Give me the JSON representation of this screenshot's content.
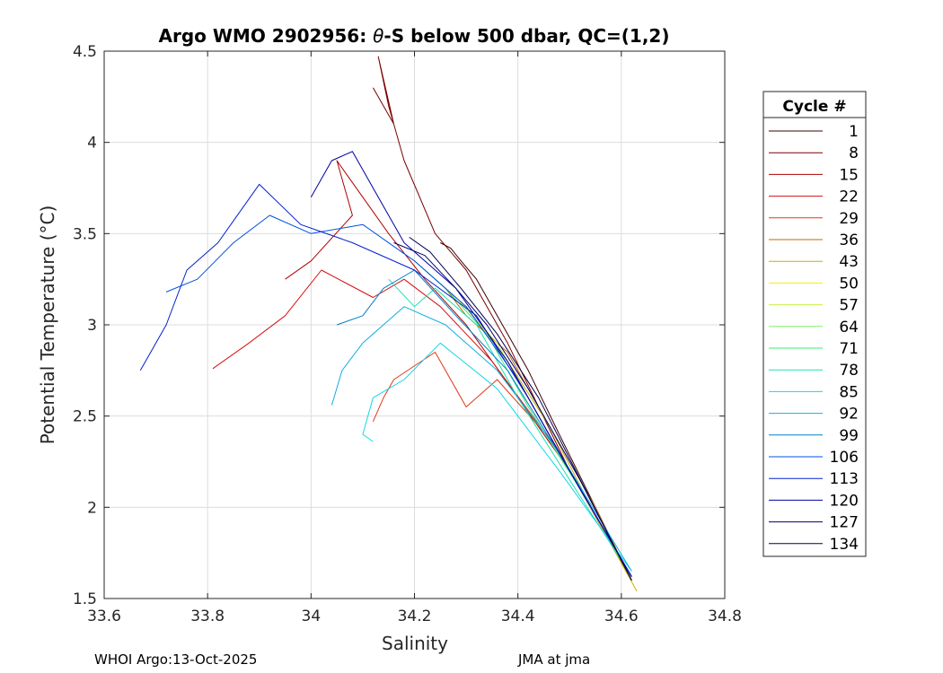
{
  "chart_data": {
    "type": "line",
    "title_prefix": "Argo WMO 2902956: ",
    "title_theta": "θ",
    "title_suffix": "-S below 500 dbar,  QC=(1,2)",
    "xlabel": "Salinity",
    "ylabel": "Potential Temperature (°C)",
    "xlim": [
      33.6,
      34.8
    ],
    "ylim": [
      1.5,
      4.5
    ],
    "xticks": [
      33.6,
      33.8,
      34,
      34.2,
      34.4,
      34.6,
      34.8
    ],
    "xtick_labels": [
      "33.6",
      "33.8",
      "34",
      "34.2",
      "34.4",
      "34.6",
      "34.8"
    ],
    "yticks": [
      1.5,
      2,
      2.5,
      3,
      3.5,
      4,
      4.5
    ],
    "ytick_labels": [
      "1.5",
      "2",
      "2.5",
      "3",
      "3.5",
      "4",
      "4.5"
    ],
    "grid": true,
    "legend": {
      "title": "Cycle #",
      "placement": "right, outside",
      "entries": [
        {
          "label": "1",
          "color": "#3b0000"
        },
        {
          "label": "8",
          "color": "#7a0000"
        },
        {
          "label": "15",
          "color": "#b00000"
        },
        {
          "label": "22",
          "color": "#d41010"
        },
        {
          "label": "29",
          "color": "#e0381a"
        },
        {
          "label": "36",
          "color": "#c06a00"
        },
        {
          "label": "43",
          "color": "#c8b000"
        },
        {
          "label": "50",
          "color": "#f0f000"
        },
        {
          "label": "57",
          "color": "#c8f040"
        },
        {
          "label": "64",
          "color": "#80f060"
        },
        {
          "label": "71",
          "color": "#40e870"
        },
        {
          "label": "78",
          "color": "#20e0b0"
        },
        {
          "label": "85",
          "color": "#10d8e8"
        },
        {
          "label": "92",
          "color": "#10b0e0"
        },
        {
          "label": "99",
          "color": "#0080c8"
        },
        {
          "label": "106",
          "color": "#0050e0"
        },
        {
          "label": "113",
          "color": "#0020d0"
        },
        {
          "label": "120",
          "color": "#0000a0"
        },
        {
          "label": "127",
          "color": "#000070"
        },
        {
          "label": "134",
          "color": "#000050"
        }
      ]
    },
    "series": [
      {
        "name": "cycle 1",
        "color": "#3b0000",
        "x": [
          34.62,
          34.55,
          34.48,
          34.42,
          34.36,
          34.32,
          34.29,
          34.27,
          34.25
        ],
        "y": [
          1.6,
          2.0,
          2.4,
          2.75,
          3.05,
          3.25,
          3.35,
          3.42,
          3.45
        ]
      },
      {
        "name": "cycle 8",
        "color": "#7a0000",
        "x": [
          34.62,
          34.5,
          34.38,
          34.3,
          34.24,
          34.18,
          34.15,
          34.13,
          34.16,
          34.12
        ],
        "y": [
          1.6,
          2.2,
          2.9,
          3.3,
          3.5,
          3.9,
          4.2,
          4.47,
          4.1,
          4.3
        ]
      },
      {
        "name": "cycle 15",
        "color": "#b00000",
        "x": [
          34.62,
          34.5,
          34.4,
          34.3,
          34.22,
          34.15,
          34.1,
          34.05,
          34.08,
          34.0,
          33.95
        ],
        "y": [
          1.6,
          2.2,
          2.6,
          3.0,
          3.25,
          3.5,
          3.7,
          3.9,
          3.6,
          3.35,
          3.25
        ]
      },
      {
        "name": "cycle 22",
        "color": "#d41010",
        "x": [
          34.62,
          34.48,
          34.35,
          34.25,
          34.18,
          34.12,
          34.02,
          33.95,
          33.88,
          33.81
        ],
        "y": [
          1.6,
          2.3,
          2.8,
          3.1,
          3.25,
          3.15,
          3.3,
          3.05,
          2.9,
          2.76
        ]
      },
      {
        "name": "cycle 29",
        "color": "#e0381a",
        "x": [
          34.62,
          34.47,
          34.36,
          34.3,
          34.24,
          34.16,
          34.14,
          34.12
        ],
        "y": [
          1.6,
          2.35,
          2.7,
          2.55,
          2.85,
          2.7,
          2.6,
          2.47
        ]
      },
      {
        "name": "cycle 36",
        "color": "#c06a00",
        "x": [
          34.62,
          34.55,
          34.45,
          34.38,
          34.3,
          34.26
        ],
        "y": [
          1.6,
          2.0,
          2.5,
          2.85,
          3.05,
          3.2
        ]
      },
      {
        "name": "cycle 43",
        "color": "#c8b000",
        "x": [
          34.63,
          34.56,
          34.46,
          34.38,
          34.3,
          34.24
        ],
        "y": [
          1.54,
          1.9,
          2.45,
          2.8,
          3.1,
          3.25
        ]
      },
      {
        "name": "cycle 57",
        "color": "#c8f040",
        "x": [
          34.62,
          34.54,
          34.44,
          34.36,
          34.28,
          34.22
        ],
        "y": [
          1.62,
          2.0,
          2.5,
          2.9,
          3.15,
          3.3
        ]
      },
      {
        "name": "cycle 71",
        "color": "#40e870",
        "x": [
          34.62,
          34.52,
          34.42,
          34.34,
          34.26,
          34.2
        ],
        "y": [
          1.62,
          2.1,
          2.55,
          2.95,
          3.2,
          3.35
        ]
      },
      {
        "name": "cycle 78",
        "color": "#20e0b0",
        "x": [
          34.62,
          34.5,
          34.4,
          34.32,
          34.24,
          34.2,
          34.15
        ],
        "y": [
          1.62,
          2.15,
          2.6,
          3.0,
          3.2,
          3.1,
          3.25
        ]
      },
      {
        "name": "cycle 85",
        "color": "#10d8e8",
        "x": [
          34.62,
          34.48,
          34.36,
          34.25,
          34.18,
          34.12,
          34.1,
          34.12
        ],
        "y": [
          1.65,
          2.2,
          2.65,
          2.9,
          2.7,
          2.6,
          2.4,
          2.36
        ]
      },
      {
        "name": "cycle 92",
        "color": "#10b0e0",
        "x": [
          34.62,
          34.48,
          34.36,
          34.26,
          34.18,
          34.1,
          34.06,
          34.04
        ],
        "y": [
          1.65,
          2.3,
          2.75,
          3.0,
          3.1,
          2.9,
          2.75,
          2.56
        ]
      },
      {
        "name": "cycle 99",
        "color": "#0080c8",
        "x": [
          34.62,
          34.5,
          34.38,
          34.28,
          34.2,
          34.14,
          34.1,
          34.05
        ],
        "y": [
          1.62,
          2.2,
          2.75,
          3.05,
          3.3,
          3.2,
          3.05,
          3.0
        ]
      },
      {
        "name": "cycle 106",
        "color": "#0050e0",
        "x": [
          34.62,
          34.5,
          34.4,
          34.3,
          34.2,
          34.1,
          34.0,
          33.92,
          33.85,
          33.78,
          33.72
        ],
        "y": [
          1.62,
          2.2,
          2.7,
          3.1,
          3.35,
          3.55,
          3.5,
          3.6,
          3.45,
          3.25,
          3.18
        ]
      },
      {
        "name": "cycle 113",
        "color": "#0020d0",
        "x": [
          34.62,
          34.52,
          34.42,
          34.32,
          34.2,
          34.08,
          33.98,
          33.9,
          33.82,
          33.76,
          33.72,
          33.67
        ],
        "y": [
          1.62,
          2.1,
          2.6,
          3.05,
          3.3,
          3.45,
          3.55,
          3.77,
          3.45,
          3.3,
          3.0,
          2.75
        ]
      },
      {
        "name": "cycle 120",
        "color": "#0000a0",
        "x": [
          34.62,
          34.5,
          34.38,
          34.28,
          34.18,
          34.12,
          34.08,
          34.04,
          34.0
        ],
        "y": [
          1.62,
          2.2,
          2.8,
          3.2,
          3.45,
          3.75,
          3.95,
          3.9,
          3.7
        ]
      },
      {
        "name": "cycle 127",
        "color": "#000070",
        "x": [
          34.62,
          34.52,
          34.42,
          34.34,
          34.28,
          34.22,
          34.16
        ],
        "y": [
          1.6,
          2.15,
          2.65,
          3.0,
          3.2,
          3.38,
          3.45
        ]
      },
      {
        "name": "cycle 134",
        "color": "#000050",
        "x": [
          34.62,
          34.53,
          34.44,
          34.36,
          34.29,
          34.23,
          34.19
        ],
        "y": [
          1.6,
          2.1,
          2.6,
          2.95,
          3.2,
          3.4,
          3.48
        ]
      }
    ]
  },
  "footer": {
    "left": "WHOI Argo:13-Oct-2025",
    "right": "JMA at jma"
  }
}
